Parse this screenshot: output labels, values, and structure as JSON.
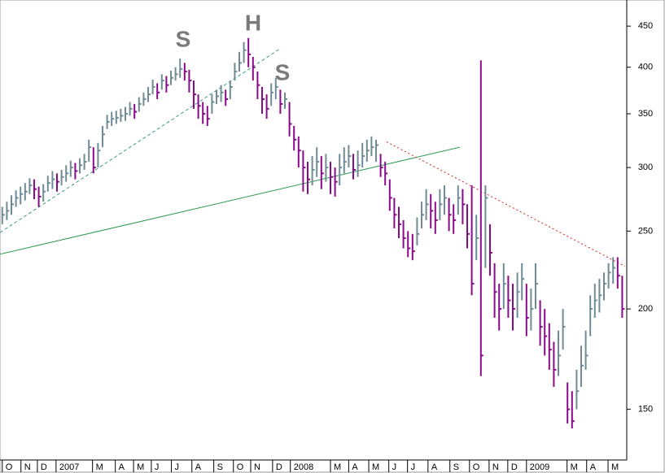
{
  "chart_data": {
    "type": "ohlc",
    "log_scale": true,
    "up_color": "#6f8c96",
    "down_color": "#8a0a8a",
    "annotations": [
      "S",
      "H",
      "S"
    ],
    "x": [
      0,
      1,
      2,
      3,
      4,
      5,
      6,
      7,
      8,
      9,
      10,
      11,
      12,
      13,
      14,
      15,
      16,
      17,
      18,
      19,
      20,
      21,
      22,
      23,
      24,
      25,
      26,
      27,
      28,
      29,
      30,
      31,
      32,
      33,
      34,
      35,
      36,
      37,
      38,
      39,
      40,
      41,
      42,
      43,
      44,
      45,
      46,
      47,
      48,
      49,
      50,
      51,
      52,
      53,
      54,
      55,
      56,
      57,
      58,
      59,
      60,
      61,
      62,
      63,
      64,
      65,
      66,
      67,
      68,
      69,
      70,
      71,
      72,
      73,
      74,
      75,
      76,
      77,
      78,
      79,
      80,
      81,
      82,
      83,
      84,
      85,
      86,
      87,
      88,
      89,
      90,
      91,
      92,
      93,
      94,
      95,
      96,
      97,
      98,
      99,
      100,
      101,
      102,
      103,
      104,
      105,
      106,
      107,
      108,
      109,
      110,
      111,
      112,
      113,
      114,
      115,
      116,
      117,
      118,
      119,
      120,
      121,
      122,
      123,
      124,
      125,
      126,
      127,
      128,
      129,
      130,
      131,
      132,
      133,
      134,
      135,
      136
    ],
    "high": [
      268,
      272,
      277,
      281,
      284,
      287,
      291,
      290,
      284,
      286,
      293,
      297,
      295,
      298,
      302,
      306,
      304,
      308,
      312,
      325,
      318,
      322,
      338,
      349,
      352,
      353,
      355,
      357,
      362,
      360,
      367,
      372,
      378,
      386,
      382,
      392,
      390,
      396,
      400,
      410,
      405,
      397,
      385,
      370,
      362,
      358,
      370,
      375,
      380,
      375,
      385,
      405,
      418,
      430,
      435,
      412,
      395,
      378,
      370,
      382,
      388,
      375,
      372,
      362,
      338,
      328,
      315,
      305,
      310,
      318,
      310,
      312,
      305,
      300,
      312,
      318,
      320,
      312,
      315,
      322,
      325,
      328,
      325,
      312,
      305,
      290,
      275,
      268,
      258,
      250,
      248,
      260,
      272,
      282,
      278,
      272,
      282,
      285,
      275,
      270,
      285,
      282,
      270,
      285,
      262,
      408,
      285,
      255,
      228,
      215,
      228,
      220,
      215,
      222,
      228,
      215,
      212,
      228,
      205,
      200,
      192,
      182,
      188,
      200,
      162,
      158,
      168,
      180,
      188,
      208,
      215,
      218,
      222,
      228,
      232,
      232,
      220
    ],
    "low": [
      255,
      258,
      262,
      268,
      270,
      273,
      278,
      274,
      268,
      272,
      280,
      282,
      280,
      285,
      288,
      292,
      290,
      295,
      298,
      305,
      295,
      300,
      318,
      335,
      338,
      340,
      342,
      343,
      348,
      345,
      352,
      358,
      362,
      370,
      365,
      375,
      372,
      380,
      385,
      388,
      385,
      372,
      355,
      345,
      340,
      338,
      350,
      360,
      362,
      358,
      365,
      385,
      395,
      405,
      400,
      385,
      365,
      350,
      345,
      358,
      365,
      350,
      355,
      328,
      315,
      300,
      280,
      278,
      285,
      292,
      282,
      288,
      278,
      276,
      285,
      295,
      300,
      290,
      292,
      300,
      305,
      310,
      305,
      292,
      285,
      265,
      252,
      245,
      238,
      232,
      230,
      240,
      252,
      258,
      252,
      248,
      258,
      262,
      250,
      248,
      262,
      255,
      238,
      208,
      230,
      165,
      225,
      220,
      195,
      188,
      200,
      195,
      188,
      195,
      205,
      185,
      188,
      200,
      180,
      175,
      168,
      160,
      165,
      178,
      144,
      142,
      150,
      160,
      168,
      185,
      195,
      198,
      205,
      212,
      215,
      212,
      195
    ],
    "close": [
      262,
      265,
      270,
      275,
      278,
      280,
      285,
      282,
      276,
      280,
      287,
      290,
      288,
      292,
      295,
      300,
      297,
      302,
      305,
      318,
      300,
      315,
      330,
      342,
      345,
      346,
      348,
      350,
      355,
      352,
      360,
      365,
      370,
      378,
      372,
      385,
      380,
      388,
      392,
      398,
      395,
      385,
      370,
      358,
      350,
      345,
      362,
      368,
      372,
      365,
      378,
      395,
      405,
      420,
      415,
      400,
      380,
      365,
      355,
      372,
      378,
      360,
      365,
      340,
      325,
      315,
      300,
      290,
      298,
      305,
      295,
      300,
      292,
      288,
      300,
      305,
      310,
      298,
      302,
      310,
      315,
      318,
      320,
      300,
      295,
      275,
      262,
      255,
      245,
      238,
      236,
      248,
      262,
      270,
      265,
      258,
      270,
      275,
      262,
      258,
      275,
      270,
      248,
      215,
      245,
      175,
      275,
      235,
      210,
      200,
      215,
      205,
      200,
      210,
      218,
      195,
      200,
      215,
      190,
      185,
      178,
      168,
      175,
      190,
      150,
      145,
      158,
      170,
      175,
      200,
      205,
      208,
      215,
      222,
      225,
      220,
      200
    ],
    "trendlines": [
      {
        "color": "#3a9a8a",
        "style": "dashed",
        "x": [
          -0.5,
          61
        ],
        "y": [
          249,
          422
        ]
      },
      {
        "color": "#2e9a4e",
        "style": "solid",
        "x": [
          -0.5,
          100.4
        ],
        "y": [
          234,
          318
        ]
      },
      {
        "color": "#e02020",
        "style": "dotted",
        "x": [
          84.3,
          136.6
        ],
        "y": [
          323,
          226
        ]
      }
    ],
    "xlim": [
      -0.5,
      137
    ],
    "xticks": [
      {
        "value": 0,
        "label": "O"
      },
      {
        "value": 4.1,
        "label": "N"
      },
      {
        "value": 7.7,
        "label": "D"
      },
      {
        "value": 11.8,
        "label": "2007"
      },
      {
        "value": 19.8,
        "label": "M"
      },
      {
        "value": 24.8,
        "label": "A"
      },
      {
        "value": 28.8,
        "label": "M"
      },
      {
        "value": 32.7,
        "label": "J"
      },
      {
        "value": 37.1,
        "label": "J"
      },
      {
        "value": 41.6,
        "label": "A"
      },
      {
        "value": 46.4,
        "label": "S"
      },
      {
        "value": 50.7,
        "label": "O"
      },
      {
        "value": 54.5,
        "label": "N"
      },
      {
        "value": 59.3,
        "label": "D"
      },
      {
        "value": 63.2,
        "label": "2008"
      },
      {
        "value": 72,
        "label": "M"
      },
      {
        "value": 76,
        "label": "A"
      },
      {
        "value": 80.4,
        "label": "M"
      },
      {
        "value": 84.8,
        "label": "J"
      },
      {
        "value": 88.9,
        "label": "J"
      },
      {
        "value": 93.4,
        "label": "A"
      },
      {
        "value": 98.2,
        "label": "S"
      },
      {
        "value": 102.5,
        "label": "O"
      },
      {
        "value": 106.8,
        "label": "N"
      },
      {
        "value": 110.9,
        "label": "D"
      },
      {
        "value": 115,
        "label": "2009"
      },
      {
        "value": 123.9,
        "label": "M"
      },
      {
        "value": 128.2,
        "label": "A"
      },
      {
        "value": 132.9,
        "label": "M"
      }
    ],
    "ylim": [
      130,
      485
    ],
    "yticks": [
      150,
      200,
      250,
      300,
      350,
      400,
      450
    ]
  }
}
